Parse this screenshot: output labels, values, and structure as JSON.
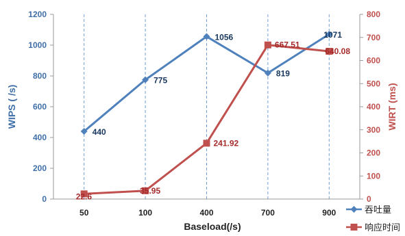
{
  "chart_data": {
    "type": "line",
    "title": "",
    "categories": [
      "50",
      "100",
      "400",
      "700",
      "900"
    ],
    "xlabel": "Baseload(/s)",
    "y_left": {
      "label": "WIPS ( /s)",
      "range": [
        0,
        1200
      ],
      "ticks": [
        0,
        200,
        400,
        600,
        800,
        1000,
        1200
      ],
      "color": "#3f6fa8"
    },
    "y_right": {
      "label": "WIRT (ms)",
      "range": [
        0,
        800
      ],
      "ticks": [
        0,
        100,
        200,
        300,
        400,
        500,
        600,
        700,
        800
      ],
      "color": "#c0504d"
    },
    "grid": {
      "vertical": "dashed",
      "horizontal": false
    },
    "legend_position": "bottom-right",
    "series": [
      {
        "name": "吞吐量",
        "axis": "left",
        "color": "#4f81bd",
        "marker": "diamond",
        "values": [
          440,
          775,
          1056,
          819,
          1071
        ],
        "data_labels": [
          "440",
          "775",
          "1056",
          "819",
          "1071"
        ]
      },
      {
        "name": "响应时间",
        "axis": "right",
        "color": "#c0504d",
        "marker": "square",
        "values": [
          22.6,
          35.95,
          241.92,
          667.51,
          640.08
        ],
        "data_labels": [
          "22.6",
          "35.95",
          "241.92",
          "667.51",
          "640.08"
        ]
      }
    ]
  }
}
